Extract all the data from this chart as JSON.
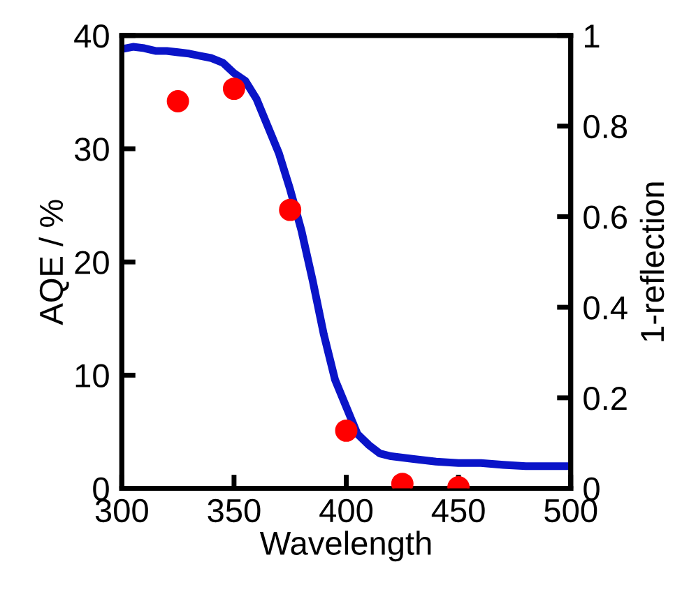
{
  "chart_data": {
    "type": "scatter",
    "xlabel": "Wavelength",
    "ylabel": "AQE / %",
    "y2label": "1-reflection",
    "xlim": [
      300,
      500
    ],
    "xticks": [
      300,
      350,
      400,
      450,
      500
    ],
    "ylim": [
      0,
      40
    ],
    "yticks": [
      0,
      10,
      20,
      30,
      40
    ],
    "y2lim": [
      0,
      1
    ],
    "y2ticks": [
      0,
      0.2,
      0.4,
      0.6,
      0.8,
      1
    ],
    "grid": false,
    "legend": false,
    "series": [
      {
        "type": "line",
        "axis": "y2",
        "color": "#0a14c8",
        "marker": "none",
        "line_style": "solid",
        "x": [
          300,
          305,
          310,
          315,
          320,
          325,
          330,
          335,
          340,
          345,
          350,
          355,
          360,
          365,
          370,
          375,
          380,
          385,
          390,
          395,
          400,
          405,
          410,
          415,
          420,
          430,
          440,
          450,
          460,
          470,
          480,
          490,
          500
        ],
        "values": [
          0.97,
          0.975,
          0.972,
          0.966,
          0.966,
          0.963,
          0.96,
          0.955,
          0.95,
          0.94,
          0.917,
          0.9,
          0.86,
          0.8,
          0.74,
          0.66,
          0.57,
          0.46,
          0.34,
          0.24,
          0.18,
          0.12,
          0.096,
          0.077,
          0.071,
          0.065,
          0.059,
          0.056,
          0.056,
          0.052,
          0.049,
          0.049,
          0.049
        ]
      },
      {
        "color": "#ff0000",
        "marker": "circle",
        "x": [
          325,
          350,
          375,
          400,
          425,
          450
        ],
        "values": [
          34.2,
          35.3,
          24.6,
          5.1,
          0.4,
          0.1
        ]
      }
    ]
  }
}
